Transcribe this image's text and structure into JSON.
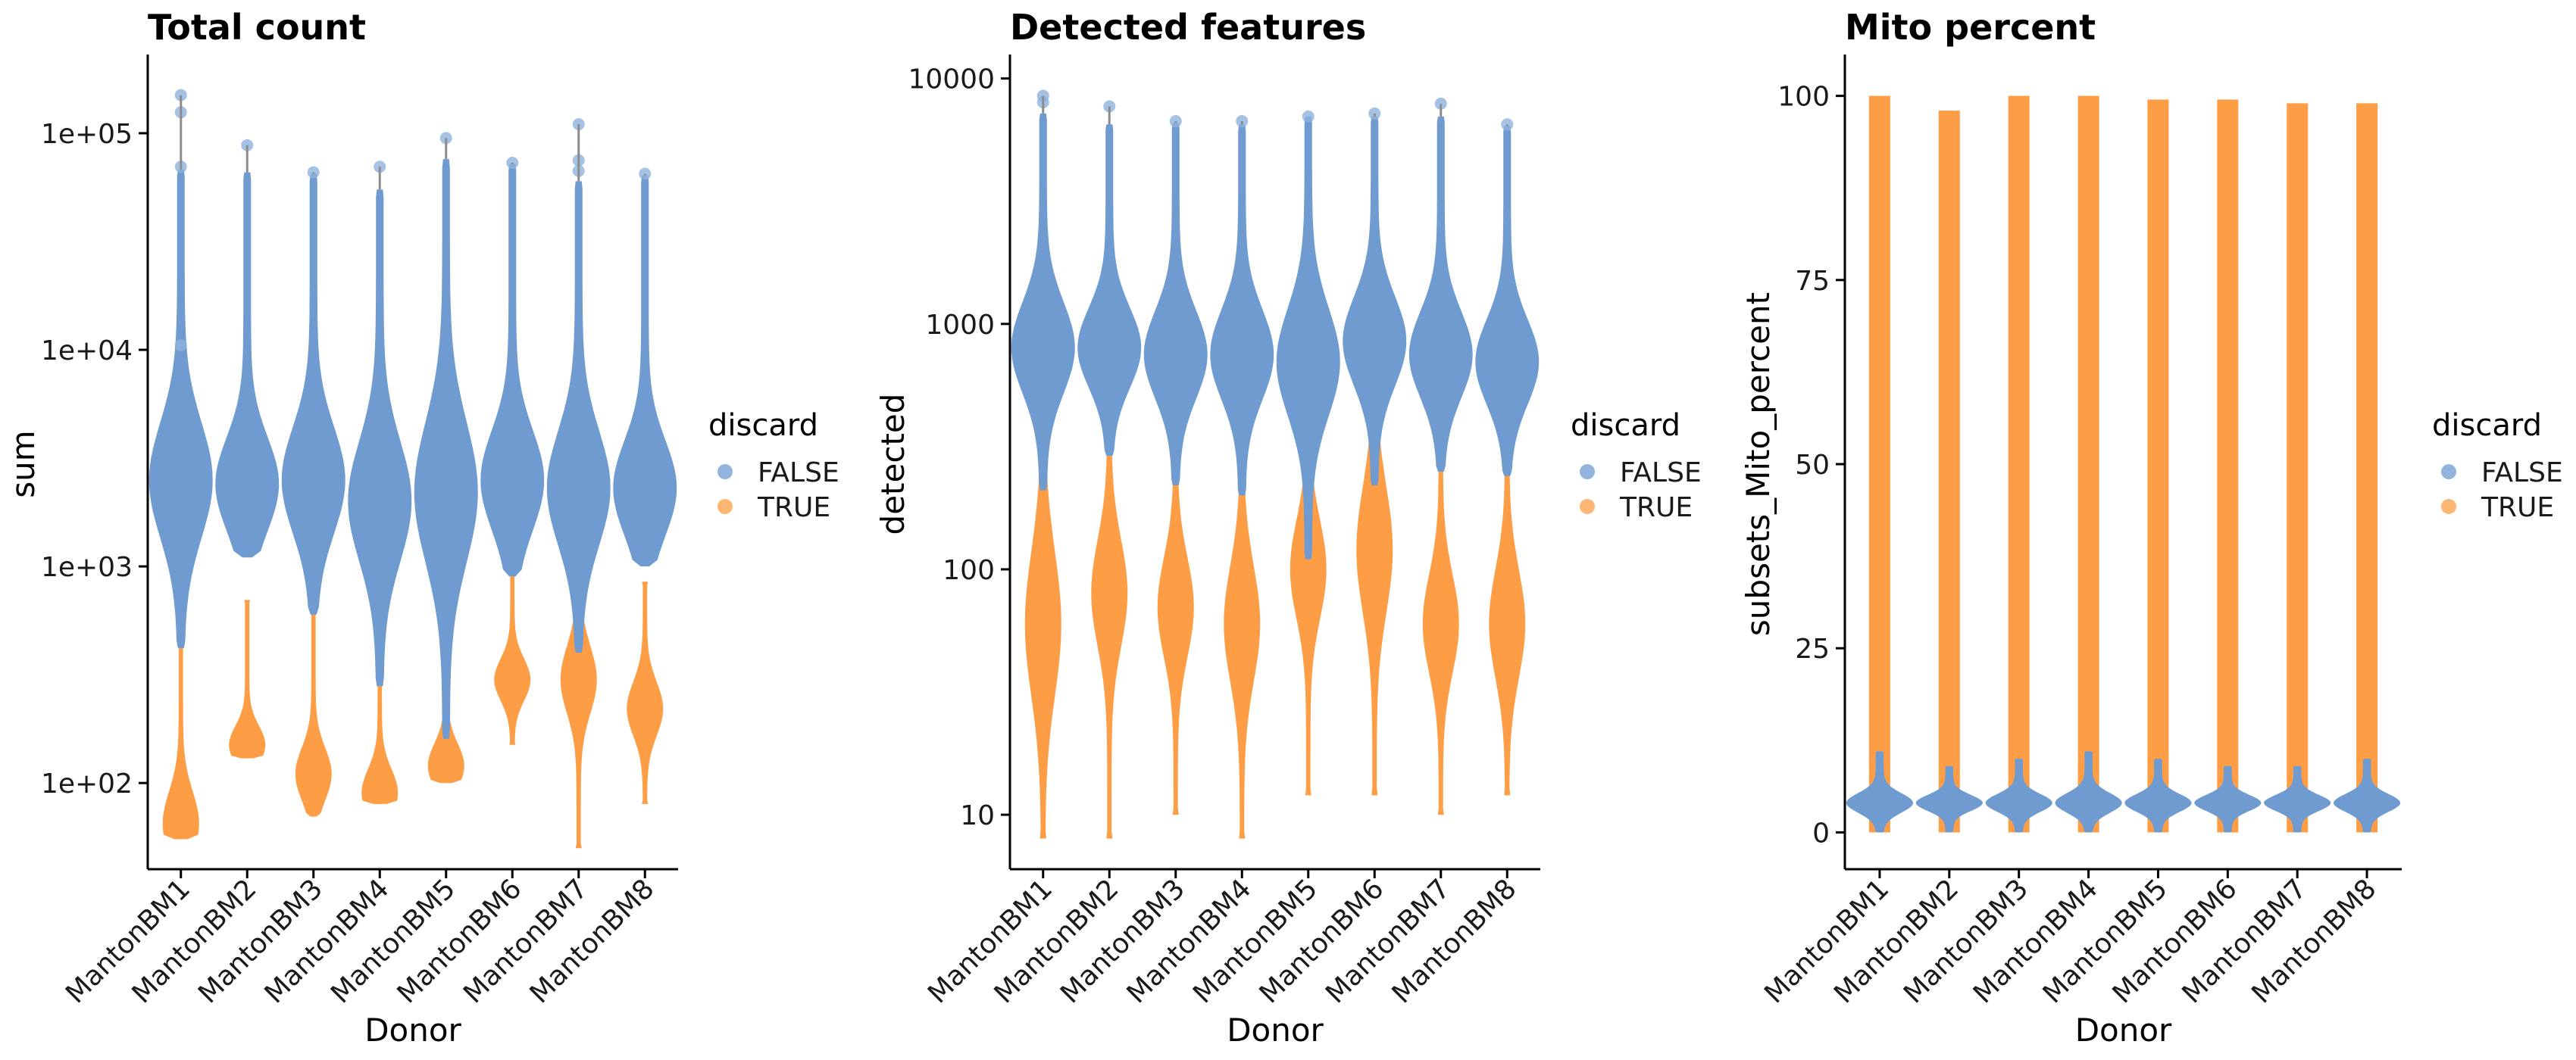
{
  "colors": {
    "false": "#6f9bd1",
    "true": "#fd9e47",
    "outlier_false": "#8fb1dd",
    "whisker": "#8c8c8c",
    "axis": "#000000"
  },
  "chart_data": [
    {
      "type": "violin",
      "title": "Total count",
      "xlabel": "Donor",
      "ylabel": "sum",
      "yscale": "log10",
      "yticks": [
        100,
        1000,
        10000,
        100000
      ],
      "ytick_labels": [
        "1e+02",
        "1e+03",
        "1e+04",
        "1e+05"
      ],
      "ylim": [
        40,
        220000
      ],
      "categories": [
        "MantonBM1",
        "MantonBM2",
        "MantonBM3",
        "MantonBM4",
        "MantonBM5",
        "MantonBM6",
        "MantonBM7",
        "MantonBM8"
      ],
      "legend": {
        "title": "discard",
        "entries": [
          "FALSE",
          "TRUE"
        ],
        "placement": "right"
      },
      "series": [
        {
          "name": "FALSE",
          "min": [
            420,
            1100,
            600,
            280,
            160,
            900,
            400,
            1000
          ],
          "max": [
            68000,
            66000,
            65000,
            55000,
            76000,
            72000,
            60000,
            64000
          ],
          "mode": [
            2500,
            2400,
            2500,
            2000,
            2200,
            2500,
            2300,
            2300
          ],
          "outliers": [
            [
              150000,
              125000,
              70000,
              10500
            ],
            [
              88000
            ],
            [
              66000
            ],
            [
              70000
            ],
            [
              95000
            ],
            [
              73000
            ],
            [
              110000,
              75000,
              67000
            ],
            [
              65000
            ]
          ]
        },
        {
          "name": "TRUE",
          "min": [
            55,
            130,
            70,
            80,
            100,
            150,
            50,
            80
          ],
          "max": [
            950,
            700,
            700,
            650,
            700,
            950,
            950,
            850
          ],
          "mode": [
            65,
            150,
            110,
            90,
            120,
            300,
            300,
            220
          ]
        }
      ]
    },
    {
      "type": "violin",
      "title": "Detected features",
      "xlabel": "Donor",
      "ylabel": "detected",
      "yscale": "log10",
      "yticks": [
        10,
        100,
        1000,
        10000
      ],
      "ytick_labels": [
        "10",
        "100",
        "1000",
        "10000"
      ],
      "ylim": [
        6,
        12000
      ],
      "categories": [
        "MantonBM1",
        "MantonBM2",
        "MantonBM3",
        "MantonBM4",
        "MantonBM5",
        "MantonBM6",
        "MantonBM7",
        "MantonBM8"
      ],
      "legend": {
        "title": "discard",
        "entries": [
          "FALSE",
          "TRUE"
        ],
        "placement": "right"
      },
      "series": [
        {
          "name": "FALSE",
          "min": [
            210,
            290,
            220,
            200,
            110,
            220,
            250,
            240
          ],
          "max": [
            7200,
            6500,
            6600,
            6500,
            7000,
            7000,
            7000,
            6400
          ],
          "mode": [
            800,
            800,
            750,
            750,
            700,
            850,
            750,
            700
          ],
          "outliers": [
            [
              8500,
              8000
            ],
            [
              7700
            ],
            [
              6700
            ],
            [
              6700
            ],
            [
              7000
            ],
            [
              7200
            ],
            [
              7900
            ],
            [
              6500
            ]
          ]
        },
        {
          "name": "TRUE",
          "min": [
            8,
            8,
            10,
            8,
            12,
            12,
            10,
            12
          ],
          "max": [
            2200,
            500,
            480,
            700,
            550,
            1600,
            450,
            800
          ],
          "mode": [
            60,
            80,
            70,
            60,
            100,
            120,
            60,
            60
          ]
        }
      ]
    },
    {
      "type": "violin",
      "title": "Mito percent",
      "xlabel": "Donor",
      "ylabel": "subsets_Mito_percent",
      "yscale": "linear",
      "yticks": [
        0,
        25,
        50,
        75,
        100
      ],
      "ytick_labels": [
        "0",
        "25",
        "50",
        "75",
        "100"
      ],
      "ylim": [
        -5,
        105
      ],
      "categories": [
        "MantonBM1",
        "MantonBM2",
        "MantonBM3",
        "MantonBM4",
        "MantonBM5",
        "MantonBM6",
        "MantonBM7",
        "MantonBM8"
      ],
      "legend": {
        "title": "discard",
        "entries": [
          "FALSE",
          "TRUE"
        ],
        "placement": "right"
      },
      "series": [
        {
          "name": "FALSE",
          "min": [
            0,
            0,
            0,
            0,
            0,
            0,
            0,
            0
          ],
          "max": [
            11,
            9,
            10,
            11,
            10,
            9,
            9,
            10
          ],
          "mode": [
            4,
            4,
            4,
            4,
            4,
            4,
            4,
            4
          ]
        },
        {
          "name": "TRUE",
          "min": [
            0,
            0,
            0,
            0,
            0,
            0,
            0,
            0
          ],
          "max": [
            100,
            98,
            100,
            100,
            99.5,
            99.5,
            99,
            99
          ]
        }
      ]
    }
  ]
}
